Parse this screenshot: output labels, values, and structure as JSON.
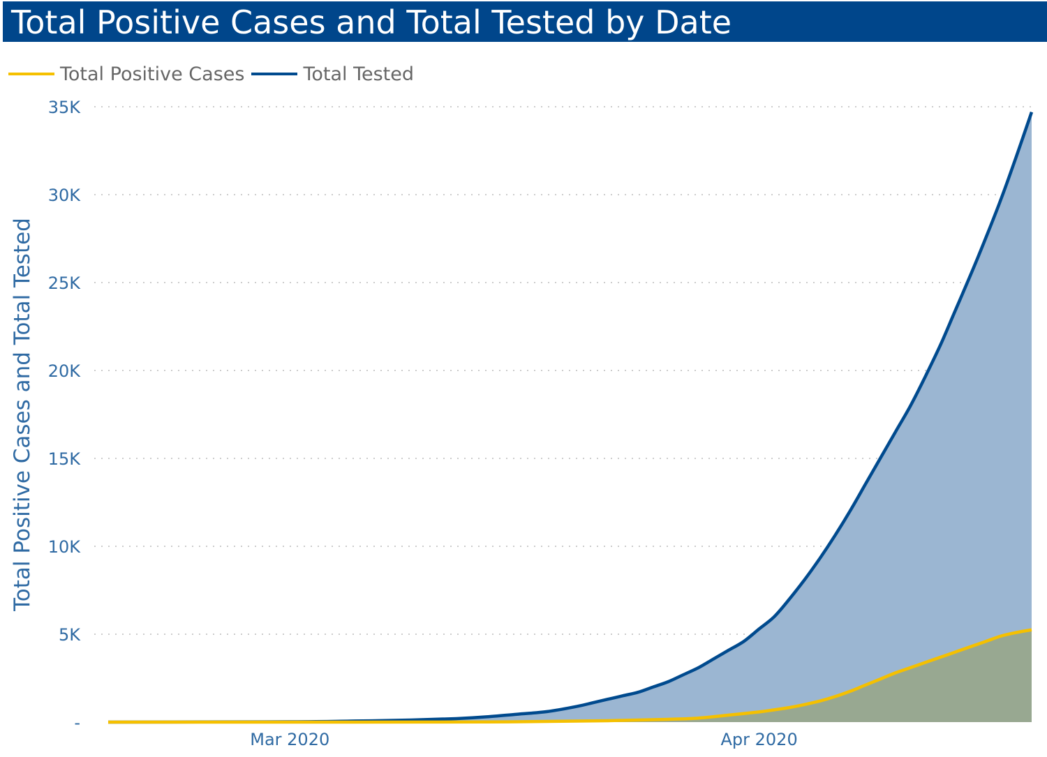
{
  "header": {
    "title": "Total Positive Cases and Total Tested by Date"
  },
  "colors": {
    "title_background": "#00468b",
    "positive_line": "#f5c000",
    "tested_line": "#004a8e",
    "tested_fill": "#9bb6d2",
    "positive_fill": "#98a891",
    "axis_text": "#2f6aa3",
    "grid": "#cccccc"
  },
  "legend": [
    {
      "label": "Total Positive Cases",
      "color": "#f5c000"
    },
    {
      "label": "Total Tested",
      "color": "#004a8e"
    }
  ],
  "chart_data": {
    "type": "area",
    "title": "Total Positive Cases and Total Tested by Date",
    "xlabel": "",
    "ylabel": "Total Positive Cases and Total Tested",
    "xlim": [
      "2020-02-18",
      "2020-04-19"
    ],
    "ylim": [
      0,
      35000
    ],
    "x_ticks": [
      {
        "date": "2020-03-01",
        "label": "Mar 2020"
      },
      {
        "date": "2020-04-01",
        "label": "Apr 2020"
      }
    ],
    "y_ticks": [
      {
        "value": 0,
        "label": "-"
      },
      {
        "value": 5000,
        "label": "5K"
      },
      {
        "value": 10000,
        "label": "10K"
      },
      {
        "value": 15000,
        "label": "15K"
      },
      {
        "value": 20000,
        "label": "20K"
      },
      {
        "value": 25000,
        "label": "25K"
      },
      {
        "value": 30000,
        "label": "30K"
      },
      {
        "value": 35000,
        "label": "35K"
      }
    ],
    "grid": true,
    "legend_position": "top-left",
    "series": [
      {
        "name": "Total Positive Cases",
        "color": "#f5c000",
        "points": [
          [
            "2020-02-18",
            0
          ],
          [
            "2020-03-01",
            0
          ],
          [
            "2020-03-10",
            2
          ],
          [
            "2020-03-14",
            10
          ],
          [
            "2020-03-16",
            20
          ],
          [
            "2020-03-18",
            40
          ],
          [
            "2020-03-20",
            60
          ],
          [
            "2020-03-22",
            80
          ],
          [
            "2020-03-24",
            120
          ],
          [
            "2020-03-26",
            160
          ],
          [
            "2020-03-28",
            230
          ],
          [
            "2020-03-30",
            400
          ],
          [
            "2020-04-01",
            580
          ],
          [
            "2020-04-02",
            700
          ],
          [
            "2020-04-03",
            830
          ],
          [
            "2020-04-04",
            1000
          ],
          [
            "2020-04-05",
            1200
          ],
          [
            "2020-04-06",
            1450
          ],
          [
            "2020-04-07",
            1750
          ],
          [
            "2020-04-08",
            2100
          ],
          [
            "2020-04-09",
            2450
          ],
          [
            "2020-04-10",
            2800
          ],
          [
            "2020-04-11",
            3100
          ],
          [
            "2020-04-12",
            3400
          ],
          [
            "2020-04-13",
            3700
          ],
          [
            "2020-04-14",
            4000
          ],
          [
            "2020-04-15",
            4300
          ],
          [
            "2020-04-16",
            4600
          ],
          [
            "2020-04-17",
            4900
          ],
          [
            "2020-04-18",
            5100
          ],
          [
            "2020-04-19",
            5250
          ]
        ]
      },
      {
        "name": "Total Tested",
        "color": "#004a8e",
        "points": [
          [
            "2020-02-18",
            0
          ],
          [
            "2020-03-01",
            20
          ],
          [
            "2020-03-05",
            60
          ],
          [
            "2020-03-09",
            120
          ],
          [
            "2020-03-12",
            200
          ],
          [
            "2020-03-14",
            300
          ],
          [
            "2020-03-16",
            450
          ],
          [
            "2020-03-18",
            600
          ],
          [
            "2020-03-20",
            900
          ],
          [
            "2020-03-21",
            1100
          ],
          [
            "2020-03-22",
            1300
          ],
          [
            "2020-03-23",
            1500
          ],
          [
            "2020-03-24",
            1700
          ],
          [
            "2020-03-25",
            2000
          ],
          [
            "2020-03-26",
            2300
          ],
          [
            "2020-03-27",
            2700
          ],
          [
            "2020-03-28",
            3100
          ],
          [
            "2020-03-29",
            3600
          ],
          [
            "2020-03-30",
            4100
          ],
          [
            "2020-03-31",
            4600
          ],
          [
            "2020-04-01",
            5300
          ],
          [
            "2020-04-02",
            6000
          ],
          [
            "2020-04-03",
            7000
          ],
          [
            "2020-04-04",
            8100
          ],
          [
            "2020-04-05",
            9300
          ],
          [
            "2020-04-06",
            10600
          ],
          [
            "2020-04-07",
            12000
          ],
          [
            "2020-04-08",
            13500
          ],
          [
            "2020-04-09",
            15000
          ],
          [
            "2020-04-10",
            16500
          ],
          [
            "2020-04-11",
            18000
          ],
          [
            "2020-04-12",
            19700
          ],
          [
            "2020-04-13",
            21500
          ],
          [
            "2020-04-14",
            23500
          ],
          [
            "2020-04-15",
            25500
          ],
          [
            "2020-04-16",
            27600
          ],
          [
            "2020-04-17",
            29800
          ],
          [
            "2020-04-18",
            32200
          ],
          [
            "2020-04-19",
            34700
          ]
        ]
      }
    ]
  }
}
